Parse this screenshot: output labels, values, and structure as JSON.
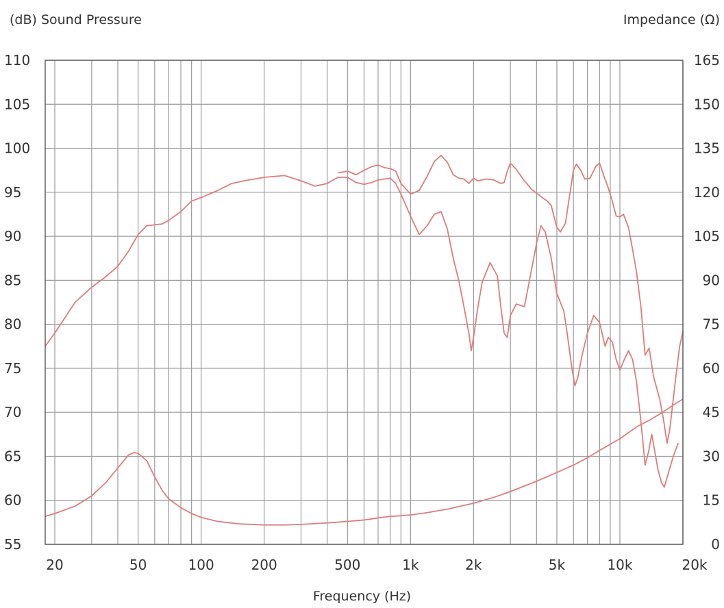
{
  "chart_data": {
    "type": "line",
    "ylabel_left": "(dB) Sound Pressure",
    "ylabel_right": "Impedance (Ω)",
    "xlabel": "Frequency (Hz)",
    "x_scale": "log",
    "xlim": [
      18,
      20000
    ],
    "ylim_left": [
      55,
      110
    ],
    "ylim_right": [
      0,
      165
    ],
    "grid": true,
    "colors": {
      "series": "#e07b7b",
      "grid": "#9a9a9a",
      "axis": "#555555"
    },
    "x_ticks": [
      {
        "value": 20,
        "label": "20"
      },
      {
        "value": 50,
        "label": "50"
      },
      {
        "value": 100,
        "label": "100"
      },
      {
        "value": 200,
        "label": "200"
      },
      {
        "value": 500,
        "label": "500"
      },
      {
        "value": 1000,
        "label": "1k"
      },
      {
        "value": 2000,
        "label": "2k"
      },
      {
        "value": 5000,
        "label": "5k"
      },
      {
        "value": 10000,
        "label": "10k"
      },
      {
        "value": 20000,
        "label": "20k"
      }
    ],
    "y_ticks_left": [
      "55",
      "60",
      "65",
      "70",
      "75",
      "80",
      "85",
      "90",
      "95",
      "100",
      "105",
      "110"
    ],
    "y_ticks_right": [
      "0",
      "15",
      "30",
      "45",
      "60",
      "75",
      "90",
      "105",
      "120",
      "135",
      "150",
      "165"
    ],
    "series": [
      {
        "axis": "left",
        "points": [
          [
            18,
            77.5
          ],
          [
            20,
            79
          ],
          [
            25,
            82.5
          ],
          [
            30,
            84.2
          ],
          [
            35,
            85.4
          ],
          [
            40,
            86.6
          ],
          [
            45,
            88.3
          ],
          [
            50,
            90.2
          ],
          [
            55,
            91.2
          ],
          [
            60,
            91.3
          ],
          [
            65,
            91.4
          ],
          [
            70,
            91.8
          ],
          [
            80,
            92.8
          ],
          [
            90,
            94.0
          ],
          [
            100,
            94.4
          ],
          [
            120,
            95.2
          ],
          [
            140,
            96.0
          ],
          [
            160,
            96.3
          ],
          [
            200,
            96.7
          ],
          [
            250,
            96.9
          ],
          [
            300,
            96.3
          ],
          [
            350,
            95.7
          ],
          [
            400,
            96.0
          ],
          [
            450,
            96.7
          ],
          [
            500,
            96.7
          ],
          [
            550,
            96.1
          ],
          [
            600,
            95.9
          ],
          [
            650,
            96.1
          ],
          [
            700,
            96.4
          ],
          [
            750,
            96.5
          ],
          [
            800,
            96.6
          ],
          [
            850,
            96.0
          ],
          [
            900,
            94.8
          ],
          [
            1000,
            92.3
          ],
          [
            1100,
            90.2
          ],
          [
            1200,
            91.2
          ],
          [
            1300,
            92.5
          ],
          [
            1400,
            92.8
          ],
          [
            1500,
            90.8
          ],
          [
            1600,
            87.5
          ],
          [
            1700,
            85.0
          ],
          [
            1800,
            82.0
          ],
          [
            1900,
            79.0
          ],
          [
            1950,
            77.0
          ],
          [
            2000,
            78.5
          ],
          [
            2100,
            82.0
          ],
          [
            2200,
            84.8
          ],
          [
            2400,
            87.0
          ],
          [
            2600,
            85.5
          ],
          [
            2700,
            82.0
          ],
          [
            2800,
            79.0
          ],
          [
            2900,
            78.5
          ],
          [
            3000,
            81.0
          ],
          [
            3200,
            82.3
          ],
          [
            3500,
            82.0
          ],
          [
            3700,
            85.0
          ],
          [
            4000,
            89.2
          ],
          [
            4200,
            91.2
          ],
          [
            4400,
            90.5
          ],
          [
            4700,
            87.5
          ],
          [
            5000,
            83.5
          ],
          [
            5400,
            81.5
          ],
          [
            5600,
            79.0
          ],
          [
            5900,
            75.0
          ],
          [
            6100,
            73.0
          ],
          [
            6300,
            74.0
          ],
          [
            6600,
            76.5
          ],
          [
            7000,
            79.0
          ],
          [
            7500,
            81.0
          ],
          [
            8000,
            80.2
          ],
          [
            8500,
            77.5
          ],
          [
            8800,
            78.5
          ],
          [
            9200,
            78.0
          ],
          [
            9600,
            76.0
          ],
          [
            10000,
            74.8
          ],
          [
            10500,
            76.0
          ],
          [
            11000,
            77.0
          ],
          [
            11500,
            76.0
          ],
          [
            12000,
            73.5
          ],
          [
            12600,
            69.0
          ],
          [
            13200,
            64.0
          ],
          [
            13700,
            65.5
          ],
          [
            14200,
            67.5
          ],
          [
            14700,
            65.5
          ],
          [
            15200,
            63.5
          ],
          [
            15800,
            62.0
          ],
          [
            16300,
            61.5
          ],
          [
            17000,
            63.0
          ],
          [
            18000,
            65.0
          ],
          [
            19000,
            66.5
          ]
        ]
      },
      {
        "axis": "left",
        "points": [
          [
            450,
            97.2
          ],
          [
            500,
            97.4
          ],
          [
            550,
            97.0
          ],
          [
            600,
            97.5
          ],
          [
            650,
            97.9
          ],
          [
            700,
            98.1
          ],
          [
            750,
            97.8
          ],
          [
            800,
            97.7
          ],
          [
            850,
            97.4
          ],
          [
            900,
            96.0
          ],
          [
            1000,
            94.8
          ],
          [
            1100,
            95.2
          ],
          [
            1200,
            96.8
          ],
          [
            1300,
            98.5
          ],
          [
            1400,
            99.2
          ],
          [
            1500,
            98.4
          ],
          [
            1600,
            97.0
          ],
          [
            1700,
            96.6
          ],
          [
            1800,
            96.5
          ],
          [
            1900,
            96.0
          ],
          [
            2000,
            96.6
          ],
          [
            2100,
            96.3
          ],
          [
            2300,
            96.5
          ],
          [
            2500,
            96.4
          ],
          [
            2700,
            96.0
          ],
          [
            2800,
            96.1
          ],
          [
            2900,
            97.4
          ],
          [
            3000,
            98.3
          ],
          [
            3200,
            97.6
          ],
          [
            3500,
            96.3
          ],
          [
            3800,
            95.3
          ],
          [
            4200,
            94.5
          ],
          [
            4500,
            94.0
          ],
          [
            4700,
            93.5
          ],
          [
            5000,
            91.0
          ],
          [
            5200,
            90.5
          ],
          [
            5500,
            91.5
          ],
          [
            5700,
            94.0
          ],
          [
            6000,
            97.5
          ],
          [
            6200,
            98.2
          ],
          [
            6500,
            97.5
          ],
          [
            6800,
            96.5
          ],
          [
            7200,
            96.6
          ],
          [
            7700,
            98.0
          ],
          [
            8000,
            98.3
          ],
          [
            8400,
            96.8
          ],
          [
            8800,
            95.5
          ],
          [
            9200,
            94.0
          ],
          [
            9600,
            92.3
          ],
          [
            10000,
            92.2
          ],
          [
            10400,
            92.5
          ],
          [
            11000,
            91.0
          ],
          [
            11500,
            88.5
          ],
          [
            12000,
            86.0
          ],
          [
            12600,
            82.0
          ],
          [
            13200,
            76.5
          ],
          [
            13800,
            77.3
          ],
          [
            14500,
            74.0
          ],
          [
            15500,
            71.5
          ],
          [
            16200,
            69.0
          ],
          [
            16800,
            66.5
          ],
          [
            17300,
            68.0
          ],
          [
            18500,
            74.0
          ],
          [
            19300,
            77.5
          ],
          [
            20000,
            79.2
          ]
        ]
      },
      {
        "axis": "right",
        "points": [
          [
            18,
            9.5
          ],
          [
            20,
            10.5
          ],
          [
            25,
            13
          ],
          [
            30,
            16.5
          ],
          [
            35,
            21
          ],
          [
            40,
            26
          ],
          [
            45,
            30.5
          ],
          [
            48,
            31.3
          ],
          [
            50,
            31
          ],
          [
            55,
            28.5
          ],
          [
            60,
            23
          ],
          [
            65,
            18.5
          ],
          [
            70,
            15.5
          ],
          [
            80,
            12.5
          ],
          [
            90,
            10.5
          ],
          [
            100,
            9.2
          ],
          [
            120,
            7.8
          ],
          [
            150,
            7.0
          ],
          [
            200,
            6.6
          ],
          [
            250,
            6.6
          ],
          [
            300,
            6.8
          ],
          [
            400,
            7.3
          ],
          [
            500,
            7.8
          ],
          [
            600,
            8.3
          ],
          [
            700,
            9.0
          ],
          [
            800,
            9.5
          ],
          [
            1000,
            10.0
          ],
          [
            1200,
            10.8
          ],
          [
            1500,
            12.0
          ],
          [
            2000,
            14.0
          ],
          [
            2500,
            16.0
          ],
          [
            3000,
            18.0
          ],
          [
            4000,
            21.5
          ],
          [
            5000,
            24.5
          ],
          [
            6000,
            27.0
          ],
          [
            7000,
            29.5
          ],
          [
            8000,
            32.0
          ],
          [
            10000,
            36.0
          ],
          [
            12000,
            40.0
          ],
          [
            14000,
            42.5
          ],
          [
            16000,
            45.0
          ],
          [
            18000,
            47.5
          ],
          [
            20000,
            49.5
          ]
        ]
      }
    ]
  }
}
